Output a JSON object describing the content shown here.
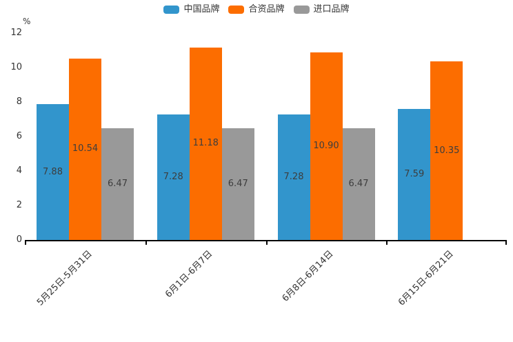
{
  "chart_data": {
    "type": "bar",
    "title": "",
    "unit_label": "%",
    "categories": [
      "5月25日-5月31日",
      "6月1日-6月7日",
      "6月8日-6月14日",
      "6月15日-6月21日"
    ],
    "series": [
      {
        "id": "china-brand",
        "name": "中国品牌",
        "color": "#3295cc",
        "values": [
          7.88,
          7.28,
          7.28,
          7.59
        ]
      },
      {
        "id": "joint-venture-brand",
        "name": "合资品牌",
        "color": "#fc6d00",
        "values": [
          10.54,
          11.18,
          10.9,
          10.35
        ]
      },
      {
        "id": "import-brand",
        "name": "进口品牌",
        "color": "#999999",
        "values": [
          6.47,
          6.47,
          6.47,
          null
        ]
      }
    ],
    "ylim": [
      0,
      12
    ],
    "yticks": [
      0,
      2,
      4,
      6,
      8,
      10,
      12
    ],
    "ylabel": "%",
    "xlabel": "",
    "grid": false,
    "legend_position": "top-center",
    "value_labels": "inside-center",
    "value_label_decimals": 2,
    "xtick_rotation": -45
  },
  "colors": {
    "axis": "#000000",
    "tick_label": "#333333",
    "value_label": "#3d3d3d",
    "background": "#ffffff"
  }
}
